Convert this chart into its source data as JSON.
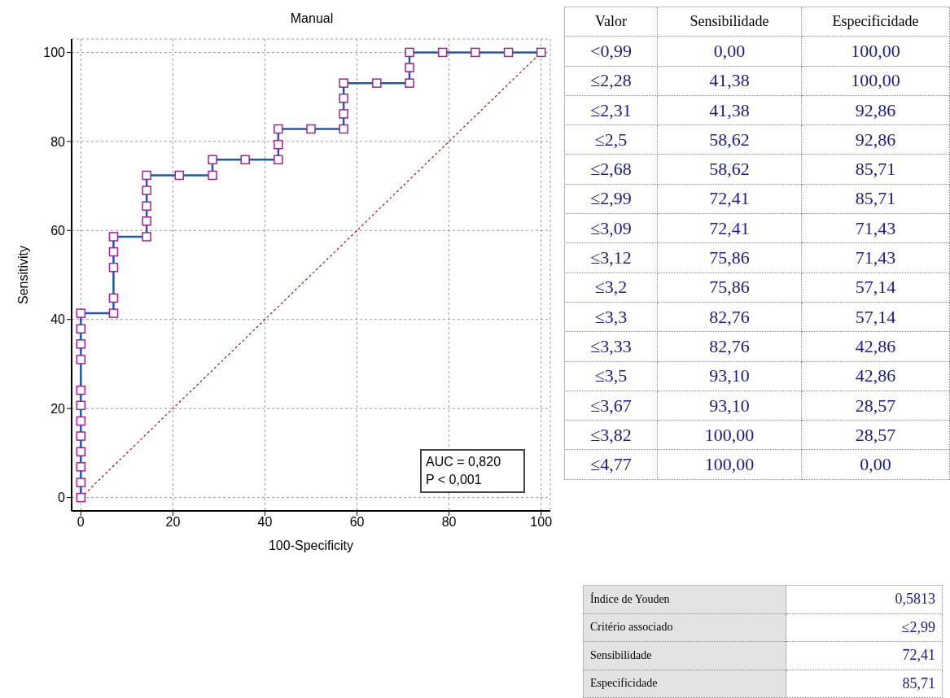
{
  "chart_data": [
    {
      "type": "line",
      "title": "Manual",
      "xlabel": "100-Specificity",
      "ylabel": "Sensitivity",
      "xlim": [
        -2,
        102
      ],
      "ylim": [
        -3,
        103
      ],
      "xticks": [
        0,
        20,
        40,
        60,
        80,
        100
      ],
      "yticks": [
        0,
        20,
        40,
        60,
        80,
        100
      ],
      "grid": true,
      "annotations": [
        "AUC = 0,820",
        "P < 0,001"
      ],
      "series": [
        {
          "color": "#1f5aa0",
          "marker": "square",
          "line_style": "solid",
          "x": [
            0,
            0,
            0,
            0,
            0,
            0,
            0,
            0,
            0,
            0,
            0,
            0,
            7.1,
            7.1,
            7.1,
            7.1,
            7.1,
            14.3,
            14.3,
            14.3,
            14.3,
            14.3,
            21.4,
            28.6,
            28.6,
            35.7,
            42.9,
            42.9,
            42.9,
            50,
            57.1,
            57.1,
            57.1,
            57.1,
            64.3,
            71.4,
            71.4,
            71.4,
            78.6,
            85.7,
            92.9,
            100
          ],
          "values": [
            0,
            3.4,
            6.9,
            10.3,
            13.8,
            17.2,
            20.7,
            24.1,
            31,
            34.5,
            37.9,
            41.4,
            41.4,
            44.8,
            51.7,
            55.2,
            58.6,
            58.6,
            62.1,
            65.5,
            69,
            72.4,
            72.4,
            72.4,
            75.9,
            75.9,
            75.9,
            79.3,
            82.8,
            82.8,
            82.8,
            86.2,
            89.7,
            93.1,
            93.1,
            93.1,
            96.6,
            100,
            100,
            100,
            100,
            100
          ]
        },
        {
          "color": "#a01010",
          "marker": "none",
          "line_style": "dotted",
          "x": [
            0,
            100
          ],
          "values": [
            0,
            100
          ]
        }
      ]
    },
    {
      "type": "other",
      "categories": [
        "Valor",
        "Sensibilidade",
        "Especificidade"
      ],
      "annotations": [
        "<0,99",
        "0,00",
        "100,00",
        "≤2,28",
        "41,38",
        "100,00",
        "≤2,31",
        "41,38",
        "92,86",
        "≤2,5",
        "58,62",
        "92,86",
        "≤2,68",
        "58,62",
        "85,71",
        "≤2,99",
        "72,41",
        "85,71",
        "≤3,09",
        "72,41",
        "71,43",
        "≤3,12",
        "75,86",
        "71,43",
        "≤3,2",
        "75,86",
        "57,14",
        "≤3,3",
        "82,76",
        "57,14",
        "≤3,33",
        "82,76",
        "42,86",
        "≤3,5",
        "93,10",
        "42,86",
        "≤3,67",
        "93,10",
        "28,57",
        "≤3,82",
        "100,00",
        "28,57",
        "≤4,77",
        "100,00",
        "0,00"
      ]
    },
    {
      "type": "other",
      "annotations": [
        "Índice de Youden",
        "0,5813",
        "Critério associado",
        "≤2,99",
        "Sensibilidade",
        "72,41",
        "Especificidade",
        "85,71"
      ]
    }
  ]
}
